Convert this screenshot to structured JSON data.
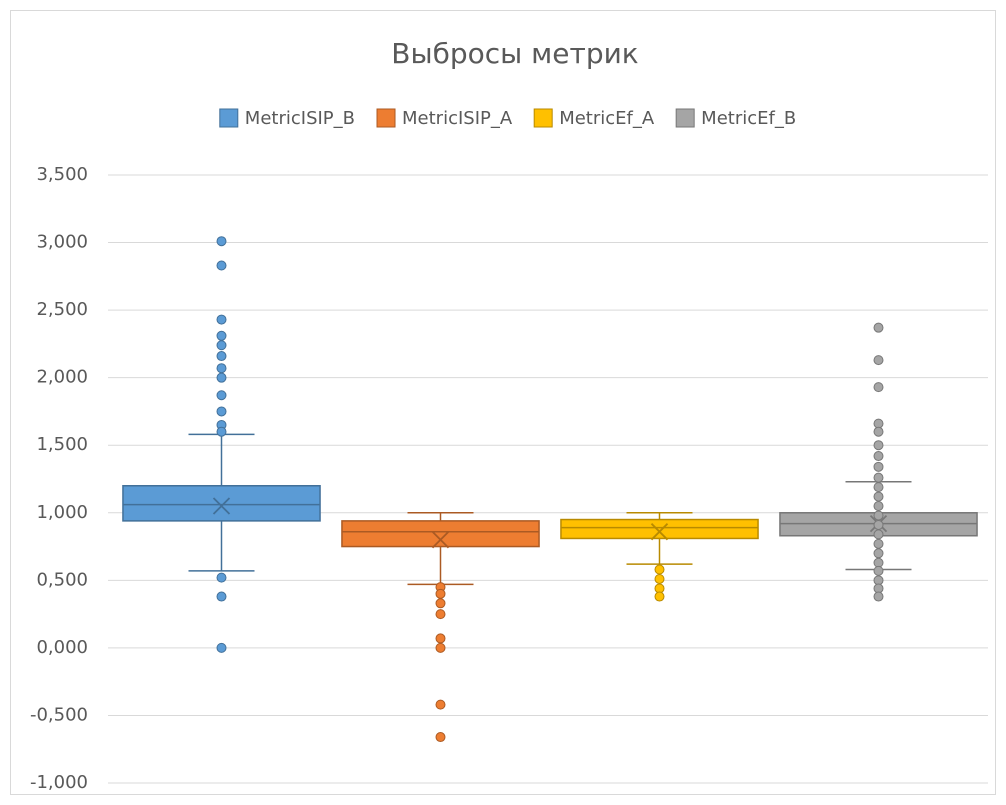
{
  "chart_data": {
    "type": "box",
    "title": "Выбросы метрик",
    "ylim": [
      -1,
      3.5
    ],
    "yticks": [
      {
        "value": -1,
        "label": "-1,000"
      },
      {
        "value": -0.5,
        "label": "-0,500"
      },
      {
        "value": 0,
        "label": "0,000"
      },
      {
        "value": 0.5,
        "label": "0,500"
      },
      {
        "value": 1,
        "label": "1,000"
      },
      {
        "value": 1.5,
        "label": "1,500"
      },
      {
        "value": 2,
        "label": "2,000"
      },
      {
        "value": 2.5,
        "label": "2,500"
      },
      {
        "value": 3,
        "label": "3,000"
      },
      {
        "value": 3.5,
        "label": "3,500"
      }
    ],
    "grid": true,
    "legend": "top",
    "series": [
      {
        "name": "MetricISIP_B",
        "color": "#5b9bd5",
        "min": 0.57,
        "q1": 0.94,
        "median": 1.06,
        "q3": 1.2,
        "max": 1.58,
        "mean": 1.05,
        "outliers": [
          3.01,
          2.83,
          2.43,
          2.31,
          2.24,
          2.16,
          2.07,
          2.0,
          1.87,
          1.75,
          1.65,
          1.6,
          0.52,
          0.38,
          0
        ]
      },
      {
        "name": "MetricISIP_A",
        "color": "#ed7d31",
        "min": 0.47,
        "q1": 0.75,
        "median": 0.86,
        "q3": 0.94,
        "max": 1.0,
        "mean": 0.8,
        "outliers": [
          0.45,
          0.4,
          0.33,
          0.25,
          0.07,
          0,
          -0.42,
          -0.66
        ]
      },
      {
        "name": "MetricEf_A",
        "color": "#ffc000",
        "min": 0.62,
        "q1": 0.81,
        "median": 0.89,
        "q3": 0.95,
        "max": 1.0,
        "mean": 0.86,
        "outliers": [
          0.58,
          0.51,
          0.44,
          0.38
        ]
      },
      {
        "name": "MetricEf_B",
        "color": "#a5a5a5",
        "min": 0.58,
        "q1": 0.83,
        "median": 0.92,
        "q3": 1.0,
        "max": 1.23,
        "mean": 0.92,
        "outliers": [
          2.37,
          2.13,
          1.93,
          1.66,
          1.6,
          1.5,
          1.42,
          1.34,
          1.26,
          1.19,
          1.12,
          1.05,
          0.98,
          0.91,
          0.84,
          0.77,
          0.7,
          0.63,
          0.57,
          0.5,
          0.44,
          0.38
        ]
      }
    ]
  }
}
